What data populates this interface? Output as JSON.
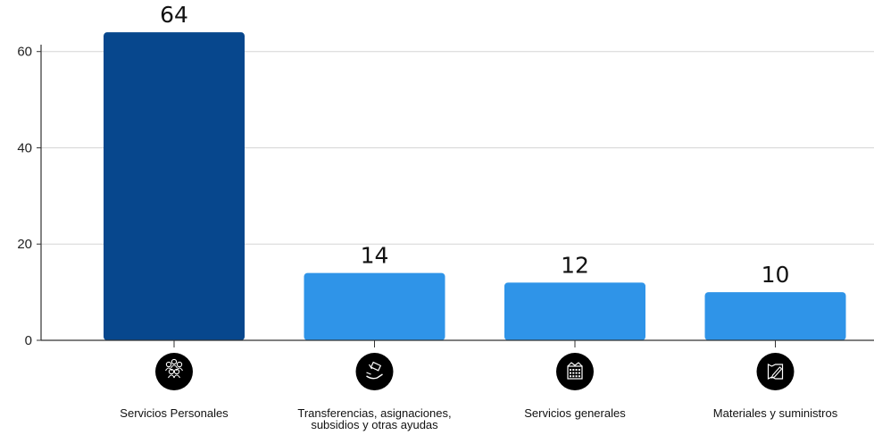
{
  "chart_data": {
    "type": "bar",
    "title": "",
    "xlabel": "",
    "ylabel": "",
    "ylim": [
      0,
      67
    ],
    "yticks": [
      0,
      20,
      40,
      60
    ],
    "grid": true,
    "categories": [
      "Servicios Personales",
      "Transferencias, asignaciones, subsidios y otras ayudas",
      "Servicios generales",
      "Materiales y suministros"
    ],
    "category_lines": [
      [
        "Servicios Personales"
      ],
      [
        "Transferencias, asignaciones,",
        "subsidios y otras ayudas"
      ],
      [
        "Servicios generales"
      ],
      [
        "Materiales y suministros"
      ]
    ],
    "category_icons": [
      "people-group-icon",
      "hand-money-icon",
      "building-icon",
      "document-pencil-icon"
    ],
    "values": [
      64,
      14,
      12,
      10
    ],
    "bar_colors": [
      "#07478d",
      "#2f94e8",
      "#2f94e8",
      "#2f94e8"
    ]
  }
}
